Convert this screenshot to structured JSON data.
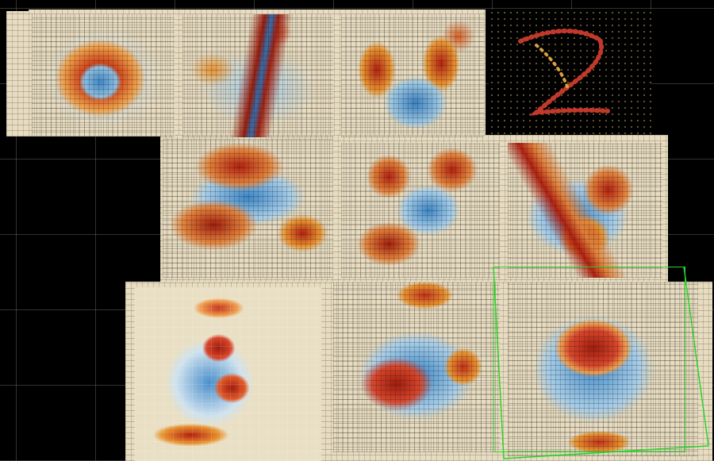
{
  "scene": {
    "description_tag": "3d-height-field-grid",
    "colors": {
      "background": "#000000",
      "grid": "#6e6e6e",
      "surface_base": "#e8dcc0",
      "high": "#b3200f",
      "mid_high": "#e8932f",
      "low": "#2f7bc0",
      "selection_box": "#2bd32b",
      "point": "#c8a060"
    },
    "tiles": [
      {
        "id": "digit-0"
      },
      {
        "id": "digit-1"
      },
      {
        "id": "digit-2"
      },
      {
        "id": "point-cloud"
      },
      {
        "id": "digit-4"
      },
      {
        "id": "digit-5"
      },
      {
        "id": "digit-6"
      },
      {
        "id": "digit-3-pixel"
      },
      {
        "id": "digit-7"
      },
      {
        "id": "digit-8-selected"
      }
    ]
  }
}
